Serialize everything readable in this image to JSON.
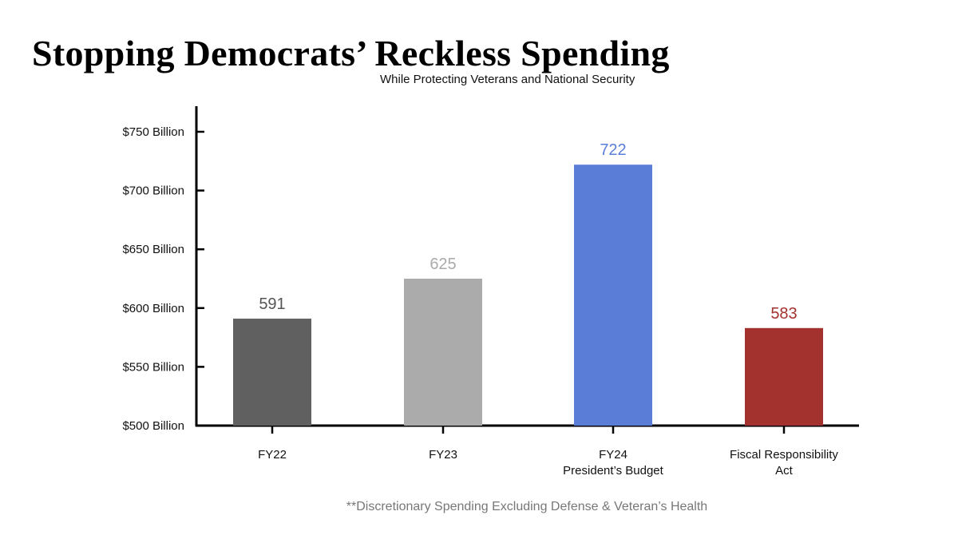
{
  "chart_data": {
    "type": "bar",
    "title": "Stopping Democrats’ Reckless Spending",
    "subtitle": "While Protecting Veterans and National Security",
    "categories": [
      [
        "FY22"
      ],
      [
        "FY23"
      ],
      [
        "FY24",
        "President’s Budget"
      ],
      [
        "Fiscal Responsibility",
        "Act"
      ]
    ],
    "values": [
      591,
      625,
      722,
      583
    ],
    "data_labels": [
      "591",
      "625",
      "722",
      "583"
    ],
    "colors": [
      "#606060",
      "#ababab",
      "#5a7dd8",
      "#a3312d"
    ],
    "label_colors": [
      "#555555",
      "#aaaaaa",
      "#5a7dd8",
      "#a3312d"
    ],
    "ylim": [
      500,
      750
    ],
    "yticks": [
      500,
      550,
      600,
      650,
      700,
      750
    ],
    "ytick_labels": [
      "$500 Billion",
      "$550 Billion",
      "$600 Billion",
      "$650 Billion",
      "$700 Billion",
      "$750 Billion"
    ],
    "xlabel": "",
    "ylabel": "",
    "grid": false,
    "footnote": "**Discretionary Spending Excluding Defense & Veteran’s Health"
  }
}
